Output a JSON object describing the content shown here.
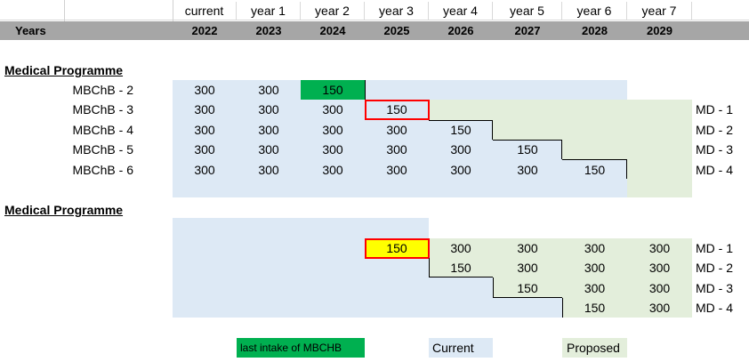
{
  "header": {
    "labels": [
      "current",
      "year 1",
      "year 2",
      "year 3",
      "year 4",
      "year 5",
      "year 6",
      "year 7"
    ],
    "years_title": "Years",
    "years": [
      "2022",
      "2023",
      "2024",
      "2025",
      "2026",
      "2027",
      "2028",
      "2029"
    ]
  },
  "section1": {
    "title": "Medical Programme",
    "rows": [
      {
        "label": "MBChB - 2",
        "cells": [
          "300",
          "300",
          "150",
          "",
          "",
          "",
          "",
          ""
        ],
        "md": ""
      },
      {
        "label": "MBChB - 3",
        "cells": [
          "300",
          "300",
          "300",
          "150",
          "",
          "",
          "",
          ""
        ],
        "md": "MD - 1"
      },
      {
        "label": "MBChB - 4",
        "cells": [
          "300",
          "300",
          "300",
          "300",
          "150",
          "",
          "",
          ""
        ],
        "md": "MD - 2"
      },
      {
        "label": "MBChB - 5",
        "cells": [
          "300",
          "300",
          "300",
          "300",
          "300",
          "150",
          "",
          ""
        ],
        "md": "MD - 3"
      },
      {
        "label": "MBChB - 6",
        "cells": [
          "300",
          "300",
          "300",
          "300",
          "300",
          "300",
          "150",
          ""
        ],
        "md": "MD - 4"
      }
    ]
  },
  "section2": {
    "title": "Medical Programme",
    "rows": [
      {
        "cells": [
          "",
          "",
          "",
          "150",
          "300",
          "300",
          "300",
          "300"
        ],
        "md": "MD - 1"
      },
      {
        "cells": [
          "",
          "",
          "",
          "",
          "150",
          "300",
          "300",
          "300"
        ],
        "md": "MD - 2"
      },
      {
        "cells": [
          "",
          "",
          "",
          "",
          "",
          "150",
          "300",
          "300"
        ],
        "md": "MD - 3"
      },
      {
        "cells": [
          "",
          "",
          "",
          "",
          "",
          "",
          "150",
          "300"
        ],
        "md": "MD - 4"
      }
    ]
  },
  "legend": {
    "last_intake": "last intake of MBCHB",
    "current": "Current",
    "proposed": "Proposed"
  },
  "colors": {
    "current": "#dde9f5",
    "proposed": "#e3eedb",
    "last_intake": "#00b050",
    "highlight_yellow": "#ffff00",
    "highlight_border": "#ff0000",
    "years_bar": "#a6a6a6"
  }
}
